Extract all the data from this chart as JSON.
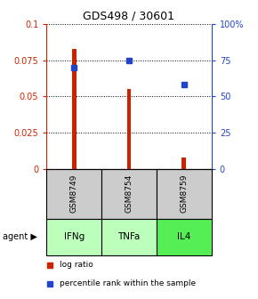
{
  "title": "GDS498 / 30601",
  "samples": [
    "GSM8749",
    "GSM8754",
    "GSM8759"
  ],
  "agents": [
    "IFNg",
    "TNFa",
    "IL4"
  ],
  "log_ratios": [
    0.083,
    0.055,
    0.008
  ],
  "percentile_ranks": [
    70,
    75,
    58
  ],
  "bar_color": "#cc2200",
  "square_color": "#2244cc",
  "ylim_left": [
    0,
    0.1
  ],
  "ylim_right": [
    0,
    100
  ],
  "yticks_left": [
    0,
    0.025,
    0.05,
    0.075,
    0.1
  ],
  "ytick_labels_left": [
    "0",
    "0.025",
    "0.05",
    "0.075",
    "0.1"
  ],
  "yticks_right": [
    0,
    25,
    50,
    75,
    100
  ],
  "ytick_labels_right": [
    "0",
    "25",
    "50",
    "75",
    "100%"
  ],
  "grey_box_color": "#cccccc",
  "agent_colors": [
    "#bbffbb",
    "#bbffbb",
    "#55ee55"
  ],
  "bar_width": 0.08,
  "background_color": "#ffffff",
  "fig_width": 2.9,
  "fig_height": 3.36
}
